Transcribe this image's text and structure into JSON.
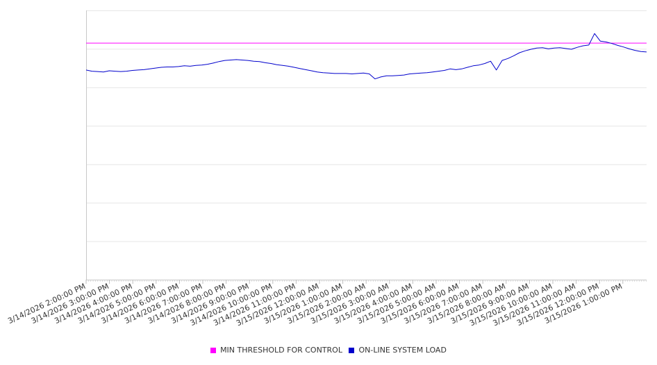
{
  "chart_data": {
    "type": "line",
    "title": "",
    "xlabel": "",
    "ylabel": "",
    "grid": true,
    "legend_position": "bottom",
    "x_range": [
      "3/14/2026 2:00:00 PM",
      "3/15/2026 2:24:00 PM"
    ],
    "x_tick_labels": [
      "3/14/2026 2:00:00 PM",
      "3/14/2026 3:00:00 PM",
      "3/14/2026 4:00:00 PM",
      "3/14/2026 5:00:00 PM",
      "3/14/2026 6:00:00 PM",
      "3/14/2026 7:00:00 PM",
      "3/14/2026 8:00:00 PM",
      "3/14/2026 9:00:00 PM",
      "3/14/2026 10:00:00 PM",
      "3/14/2026 11:00:00 PM",
      "3/15/2026 12:00:00 AM",
      "3/15/2026 1:00:00 AM",
      "3/15/2026 2:00:00 AM",
      "3/15/2026 3:00:00 AM",
      "3/15/2026 4:00:00 AM",
      "3/15/2026 5:00:00 AM",
      "3/15/2026 6:00:00 AM",
      "3/15/2026 7:00:00 AM",
      "3/15/2026 8:00:00 AM",
      "3/15/2026 9:00:00 AM",
      "3/15/2026 10:00:00 AM",
      "3/15/2026 11:00:00 AM",
      "3/15/2026 12:00:00 PM",
      "3/15/2026 1:00:00 PM"
    ],
    "y_range": [
      0,
      7
    ],
    "y_gridlines": [
      0,
      1,
      2,
      3,
      4,
      5,
      6,
      7
    ],
    "series": [
      {
        "name": "MIN THRESHOLD FOR CONTROL",
        "color": "#ff00ff",
        "values": [
          6.15,
          6.15
        ]
      },
      {
        "name": "ON-LINE SYSTEM LOAD",
        "color": "#0000cc",
        "values": [
          5.45,
          5.42,
          5.41,
          5.4,
          5.43,
          5.42,
          5.41,
          5.42,
          5.44,
          5.45,
          5.46,
          5.48,
          5.5,
          5.52,
          5.53,
          5.53,
          5.54,
          5.56,
          5.55,
          5.57,
          5.58,
          5.6,
          5.63,
          5.67,
          5.7,
          5.71,
          5.72,
          5.71,
          5.7,
          5.68,
          5.67,
          5.64,
          5.62,
          5.59,
          5.57,
          5.55,
          5.52,
          5.49,
          5.46,
          5.43,
          5.4,
          5.38,
          5.37,
          5.36,
          5.36,
          5.36,
          5.35,
          5.36,
          5.37,
          5.35,
          5.22,
          5.27,
          5.3,
          5.3,
          5.31,
          5.32,
          5.35,
          5.36,
          5.37,
          5.38,
          5.4,
          5.42,
          5.44,
          5.48,
          5.46,
          5.48,
          5.52,
          5.56,
          5.58,
          5.62,
          5.68,
          5.45,
          5.7,
          5.75,
          5.82,
          5.9,
          5.95,
          5.99,
          6.02,
          6.03,
          6.0,
          6.02,
          6.03,
          6.01,
          5.99,
          6.04,
          6.08,
          6.1,
          6.4,
          6.2,
          6.18,
          6.14,
          6.09,
          6.05,
          6.0,
          5.96,
          5.93,
          5.92
        ]
      }
    ]
  }
}
